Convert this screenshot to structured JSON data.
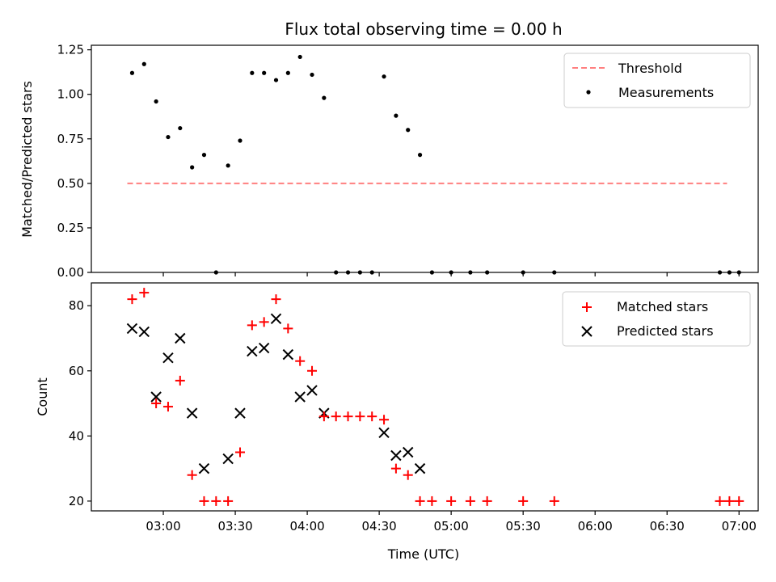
{
  "chart_data": [
    {
      "type": "scatter",
      "title": "Flux total observing time = 0.00 h",
      "ylabel": "Matched/Predicted stars",
      "ylim": [
        0,
        1.25
      ],
      "yticks": [
        "0.00",
        "0.25",
        "0.50",
        "0.75",
        "1.00",
        "1.25"
      ],
      "xlim": [
        "02:35",
        "06:55"
      ],
      "legend": "top-right",
      "threshold": {
        "name": "Threshold",
        "value": 0.5,
        "x_range": [
          "02:45",
          "06:55"
        ],
        "color": "#ff7f7f",
        "style": "dashed"
      },
      "series": [
        {
          "name": "Measurements",
          "color": "#000000",
          "marker": "dot",
          "x": [
            "02:47",
            "02:52",
            "02:57",
            "03:02",
            "03:07",
            "03:12",
            "03:17",
            "03:22",
            "03:27",
            "03:32",
            "03:37",
            "03:42",
            "03:47",
            "03:52",
            "03:57",
            "04:02",
            "04:07",
            "04:12",
            "04:17",
            "04:22",
            "04:27",
            "04:32",
            "04:37",
            "04:42",
            "04:47",
            "04:52",
            "05:00",
            "05:08",
            "05:15",
            "05:30",
            "05:43",
            "06:52",
            "06:56",
            "07:00"
          ],
          "y": [
            1.12,
            1.17,
            0.96,
            0.76,
            0.81,
            0.59,
            0.66,
            0.0,
            0.6,
            0.74,
            1.12,
            1.12,
            1.08,
            1.12,
            1.21,
            1.11,
            0.98,
            0.0,
            0.0,
            0.0,
            0.0,
            1.1,
            0.88,
            0.8,
            0.66,
            0.0,
            0.0,
            0.0,
            0.0,
            0.0,
            0.0,
            0.0,
            0.0,
            0.0
          ]
        }
      ]
    },
    {
      "type": "scatter",
      "xlabel": "Time (UTC)",
      "ylabel": "Count",
      "ylim": [
        17,
        87
      ],
      "yticks": [
        "20",
        "40",
        "60",
        "80"
      ],
      "xticks": [
        "03:00",
        "03:30",
        "04:00",
        "04:30",
        "05:00",
        "05:30",
        "06:00",
        "06:30",
        "07:00"
      ],
      "legend": "top-right",
      "series": [
        {
          "name": "Matched stars",
          "color": "#ff0000",
          "marker": "plus",
          "x": [
            "02:47",
            "02:52",
            "02:57",
            "03:02",
            "03:07",
            "03:12",
            "03:17",
            "03:22",
            "03:27",
            "03:32",
            "03:37",
            "03:42",
            "03:47",
            "03:52",
            "03:57",
            "04:02",
            "04:07",
            "04:12",
            "04:17",
            "04:22",
            "04:27",
            "04:32",
            "04:37",
            "04:42",
            "04:47",
            "04:52",
            "05:00",
            "05:08",
            "05:15",
            "05:30",
            "05:43",
            "06:52",
            "06:56",
            "07:00"
          ],
          "y": [
            82,
            84,
            50,
            49,
            57,
            28,
            20,
            20,
            20,
            35,
            74,
            75,
            82,
            73,
            63,
            60,
            46,
            46,
            46,
            46,
            46,
            45,
            30,
            28,
            20,
            20,
            20,
            20,
            20,
            20,
            20,
            20,
            20,
            20
          ]
        },
        {
          "name": "Predicted stars",
          "color": "#000000",
          "marker": "x",
          "x": [
            "02:47",
            "02:52",
            "02:57",
            "03:02",
            "03:07",
            "03:12",
            "03:17",
            "03:27",
            "03:32",
            "03:37",
            "03:42",
            "03:47",
            "03:52",
            "03:57",
            "04:02",
            "04:07",
            "04:32",
            "04:37",
            "04:42",
            "04:47"
          ],
          "y": [
            73,
            72,
            52,
            64,
            70,
            47,
            30,
            33,
            47,
            66,
            67,
            76,
            65,
            52,
            54,
            47,
            41,
            34,
            35,
            30
          ]
        }
      ]
    }
  ]
}
